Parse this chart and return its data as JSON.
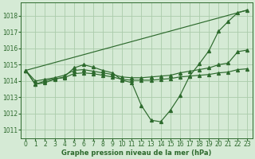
{
  "background_color": "#d5ead5",
  "grid_color": "#aaccaa",
  "line_color": "#2d6a2d",
  "title": "Graphe pression niveau de la mer (hPa)",
  "xlim": [
    -0.5,
    23.5
  ],
  "ylim": [
    1010.5,
    1018.8
  ],
  "yticks": [
    1011,
    1012,
    1013,
    1014,
    1015,
    1016,
    1017,
    1018
  ],
  "xticks": [
    0,
    1,
    2,
    3,
    4,
    5,
    6,
    7,
    8,
    9,
    10,
    11,
    12,
    13,
    14,
    15,
    16,
    17,
    18,
    19,
    20,
    21,
    22,
    23
  ],
  "line_top": {
    "x": [
      0,
      23
    ],
    "y": [
      1014.65,
      1018.35
    ]
  },
  "line_main": {
    "x": [
      0,
      1,
      2,
      3,
      4,
      5,
      6,
      7,
      8,
      9,
      10,
      11,
      12,
      13,
      14,
      15,
      16,
      17,
      18,
      19,
      20,
      21,
      22,
      23
    ],
    "y": [
      1014.65,
      1013.8,
      1013.9,
      1014.1,
      1014.25,
      1014.8,
      1015.0,
      1014.85,
      1014.65,
      1014.5,
      1014.05,
      1013.9,
      1012.5,
      1011.6,
      1011.5,
      1012.2,
      1013.1,
      1014.3,
      1015.05,
      1015.85,
      1017.05,
      1017.65,
      1018.2,
      1018.35
    ]
  },
  "line_mid": {
    "x": [
      0,
      1,
      2,
      3,
      4,
      5,
      6,
      7,
      8,
      9,
      10,
      11,
      12,
      13,
      14,
      15,
      16,
      17,
      18,
      19,
      20,
      21,
      22,
      23
    ],
    "y": [
      1014.65,
      1014.0,
      1014.1,
      1014.2,
      1014.35,
      1014.65,
      1014.7,
      1014.6,
      1014.5,
      1014.4,
      1014.25,
      1014.2,
      1014.2,
      1014.25,
      1014.3,
      1014.35,
      1014.5,
      1014.6,
      1014.7,
      1014.8,
      1015.0,
      1015.1,
      1015.8,
      1015.9
    ]
  },
  "line_low": {
    "x": [
      0,
      1,
      2,
      3,
      4,
      5,
      6,
      7,
      8,
      9,
      10,
      11,
      12,
      13,
      14,
      15,
      16,
      17,
      18,
      19,
      20,
      21,
      22,
      23
    ],
    "y": [
      1014.65,
      1013.8,
      1014.0,
      1014.15,
      1014.2,
      1014.45,
      1014.5,
      1014.45,
      1014.35,
      1014.25,
      1014.1,
      1014.05,
      1014.05,
      1014.05,
      1014.1,
      1014.15,
      1014.25,
      1014.3,
      1014.35,
      1014.4,
      1014.5,
      1014.55,
      1014.7,
      1014.75
    ]
  }
}
